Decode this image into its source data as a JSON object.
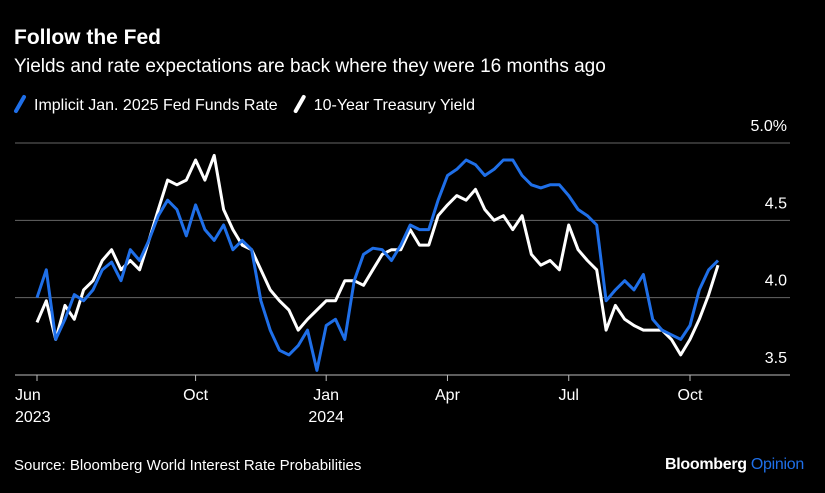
{
  "chart_data": {
    "type": "line",
    "title": "Follow the Fed",
    "subtitle": "Yields and rate expectations are back where they were 16 months ago",
    "source": "Source: Bloomberg World Interest Rate Probabilities",
    "logo": "Bloomberg",
    "logo_accent": "Opinion",
    "categories": [
      "Jun\n2023",
      null,
      null,
      null,
      null,
      null,
      null,
      null,
      null,
      null,
      null,
      null,
      null,
      null,
      null,
      null,
      null,
      "Oct",
      null,
      null,
      null,
      null,
      null,
      null,
      null,
      null,
      null,
      null,
      null,
      null,
      null,
      "Jan\n2024",
      null,
      null,
      null,
      null,
      null,
      null,
      null,
      null,
      null,
      null,
      null,
      null,
      "Apr",
      null,
      null,
      null,
      null,
      null,
      null,
      null,
      null,
      null,
      null,
      null,
      null,
      "Jul",
      null,
      null,
      null,
      null,
      null,
      null,
      null,
      null,
      null,
      null,
      null,
      null,
      "Oct",
      null,
      null,
      null
    ],
    "series": [
      {
        "name": "Implicit Jan. 2025 Fed Funds Rate",
        "color": "#1f6fe8",
        "values": [
          4.0,
          4.18,
          3.73,
          3.86,
          4.02,
          3.98,
          4.05,
          4.18,
          4.23,
          4.11,
          4.31,
          4.24,
          4.37,
          4.53,
          4.63,
          4.57,
          4.4,
          4.6,
          4.44,
          4.37,
          4.47,
          4.31,
          4.37,
          4.31,
          3.98,
          3.79,
          3.66,
          3.63,
          3.69,
          3.79,
          3.53,
          3.82,
          3.86,
          3.73,
          4.11,
          4.28,
          4.32,
          4.31,
          4.24,
          4.34,
          4.47,
          4.44,
          4.44,
          4.63,
          4.79,
          4.83,
          4.89,
          4.86,
          4.79,
          4.83,
          4.89,
          4.89,
          4.79,
          4.73,
          4.71,
          4.73,
          4.73,
          4.66,
          4.57,
          4.53,
          4.47,
          3.98,
          4.05,
          4.11,
          4.05,
          4.15,
          3.86,
          3.79,
          3.76,
          3.73,
          3.82,
          4.05,
          4.18,
          4.24
        ]
      },
      {
        "name": "10-Year Treasury Yield",
        "color": "#ffffff",
        "values": [
          3.84,
          3.98,
          3.73,
          3.95,
          3.86,
          4.05,
          4.11,
          4.24,
          4.31,
          4.18,
          4.24,
          4.18,
          4.37,
          4.57,
          4.76,
          4.73,
          4.76,
          4.89,
          4.76,
          4.92,
          4.57,
          4.44,
          4.34,
          4.31,
          4.18,
          4.05,
          3.98,
          3.92,
          3.79,
          3.86,
          3.92,
          3.98,
          3.98,
          4.11,
          4.11,
          4.08,
          4.18,
          4.28,
          4.31,
          4.31,
          4.44,
          4.34,
          4.34,
          4.53,
          4.6,
          4.66,
          4.63,
          4.7,
          4.57,
          4.5,
          4.53,
          4.44,
          4.53,
          4.28,
          4.21,
          4.24,
          4.18,
          4.47,
          4.31,
          4.24,
          4.18,
          3.79,
          3.95,
          3.86,
          3.82,
          3.79,
          3.79,
          3.79,
          3.73,
          3.63,
          3.73,
          3.86,
          4.02,
          4.21
        ]
      }
    ],
    "ylim": [
      3.5,
      5.0
    ],
    "yticks": [
      3.5,
      {
        "value": 4,
        "label": "4.0"
      },
      4.5,
      {
        "value": 5,
        "label": "5.0%"
      }
    ],
    "grid": true
  }
}
